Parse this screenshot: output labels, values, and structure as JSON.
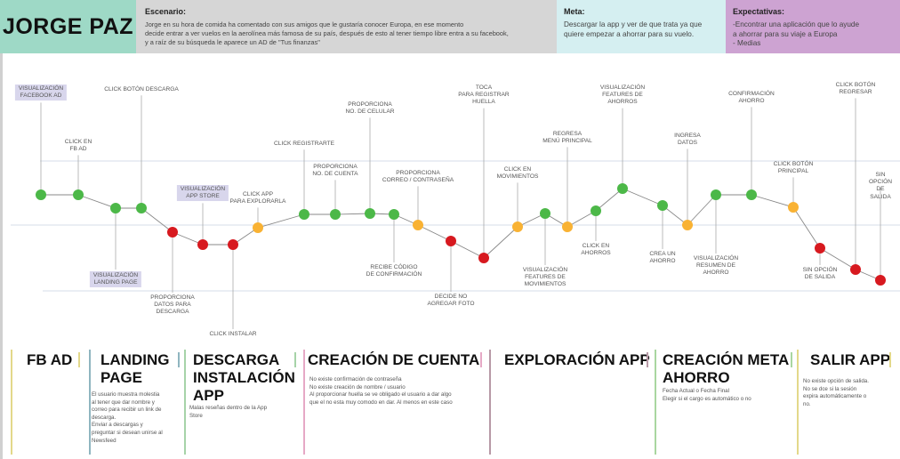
{
  "persona": {
    "name": "JORGE PAZ"
  },
  "scenario": {
    "title": "Escenario:",
    "text": "Jorge en su hora de comida ha comentado con sus amigos que le gustaría conocer Europa, en ese momento\ndecide entrar a ver vuelos en la aerolínea más famosa de su país, después de esto al tener tiempo libre entra a su facebook,\ny a raíz de su búsqueda le aparece un AD de \"Tus finanzas\""
  },
  "goal": {
    "title": "Meta:",
    "text": "Descargar la app y ver de que trata ya que\nquiere empezar a ahorrar para su vuelo."
  },
  "expectations": {
    "title": "Expectativas:",
    "text": "-Encontrar una aplicación que lo ayude\na ahorrar para su viaje a Europa\n- Medias"
  },
  "colors": {
    "positive": "#4cb848",
    "neutral": "#f9b233",
    "negative": "#d7191f"
  },
  "steps": [
    {
      "label": "Visualización\nFacebook AD",
      "emotion": "positive",
      "highlighted": true
    },
    {
      "label": "Click en\nFB AD",
      "emotion": "positive"
    },
    {
      "label": "Visualización\nLanding Page",
      "emotion": "positive",
      "highlighted": true
    },
    {
      "label": "Click botón descarga",
      "emotion": "positive"
    },
    {
      "label": "Proporciona\ndatos para\ndescarga",
      "emotion": "negative"
    },
    {
      "label": "Visualización\nApp Store",
      "emotion": "negative",
      "highlighted": true
    },
    {
      "label": "Click instalar",
      "emotion": "negative"
    },
    {
      "label": "Click app\npara explorarla",
      "emotion": "neutral"
    },
    {
      "label": "Click registrarte",
      "emotion": "positive"
    },
    {
      "label": "Proporciona\nno. de cuenta",
      "emotion": "positive"
    },
    {
      "label": "Proporciona\nno. de celular",
      "emotion": "positive"
    },
    {
      "label": "Recibe código\nde confirmación",
      "emotion": "positive"
    },
    {
      "label": "Proporciona\ncorreo / contraseña",
      "emotion": "neutral"
    },
    {
      "label": "Decide no\nagregar foto",
      "emotion": "negative"
    },
    {
      "label": "Toca\npara registrar\nhuella",
      "emotion": "negative"
    },
    {
      "label": "Click en\nmovimientos",
      "emotion": "neutral"
    },
    {
      "label": "Visualización\nfeatures de\nmovimientos",
      "emotion": "positive"
    },
    {
      "label": "Regresa\nmenú principal",
      "emotion": "neutral"
    },
    {
      "label": "Click en\nahorros",
      "emotion": "positive"
    },
    {
      "label": "Visualización\nfeatures de\nahorros",
      "emotion": "positive"
    },
    {
      "label": "Crea un\nahorro",
      "emotion": "positive"
    },
    {
      "label": "Ingresa\ndatos",
      "emotion": "neutral"
    },
    {
      "label": "Visualización\nresumen de\nahorro",
      "emotion": "positive"
    },
    {
      "label": "Confirmación\nahorro",
      "emotion": "positive"
    },
    {
      "label": "Click botón\nprincipal",
      "emotion": "neutral"
    },
    {
      "label": "Sin opción\nde salida",
      "emotion": "negative"
    },
    {
      "label": "Click botón\nregresar",
      "emotion": "negative"
    },
    {
      "label": "Sin opción\nde salida",
      "emotion": "negative"
    }
  ],
  "phases": [
    {
      "title": "FB AD",
      "note": "",
      "color": "#e3d88a"
    },
    {
      "title": "LANDING\nPAGE",
      "note": "El usuario muestra molestia\nal tener que dar nombre y\ncorreo para recibir un link de\ndescarga.\nEnviar a descargas y\npreguntar si desean unirse al\nNewsfeed",
      "color": "#8fb5c0"
    },
    {
      "title": "DESCARGA\nINSTALACIÓN\nAPP",
      "note": "Malas reseñas dentro de la App\nStore",
      "color": "#a6d3a8"
    },
    {
      "title": "CREACIÓN DE CUENTA",
      "note": "No existe confirmación de contraseña\nNo existe creación de nombre / usuario\nAl proporcionar huella se ve obligado el usuario a dar algo\nque el no esta muy comodo en dar. Al menos en este caso",
      "color": "#e6a9c6"
    },
    {
      "title": "EXPLORACIÓN APP",
      "note": "",
      "color": "#b799a6"
    },
    {
      "title": "CREACIÓN META\nAHORRO",
      "note": "Fecha Actual o Fecha Final\nElegir si el cargo es automático o no",
      "color": "#a9d6a0"
    },
    {
      "title": "SALIR APP",
      "note": "No existe opción de salida.\nNo se dce si la sesión\nexpira automáticamente o\nno.",
      "color": "#e3d88a"
    }
  ]
}
